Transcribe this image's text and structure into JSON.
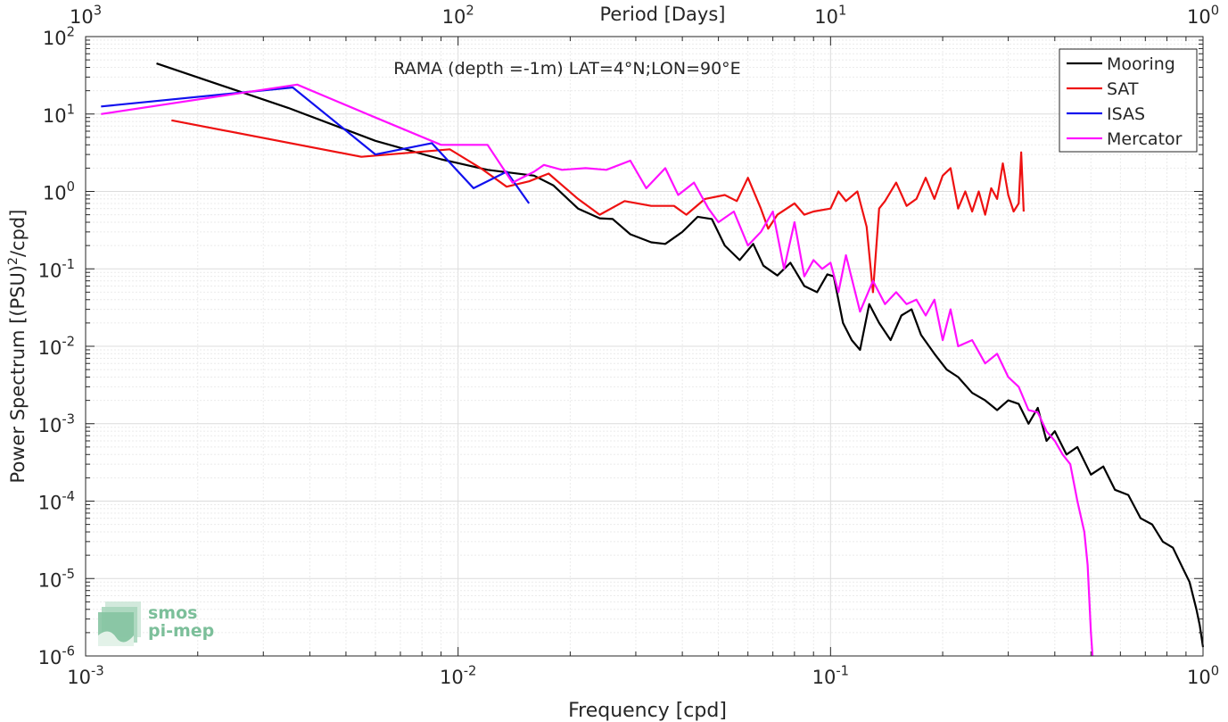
{
  "chart_data": {
    "type": "line",
    "title": "RAMA (depth =-1m) LAT=4°N;LON=90°E",
    "xlabel": "Frequency [cpd]",
    "ylabel": "Power Spectrum [(PSU)^2/cpd]",
    "top_xlabel": "Period [Days]",
    "xscale": "log",
    "yscale": "log",
    "xlim": [
      0.001,
      1
    ],
    "ylim": [
      1e-06,
      100
    ],
    "x_ticks": [
      0.001,
      0.01,
      0.1,
      1
    ],
    "y_ticks": [
      1e-06,
      1e-05,
      0.0001,
      0.001,
      0.01,
      0.1,
      1,
      10,
      100
    ],
    "x_tick_labels": [
      {
        "base": "10",
        "exp": "-3"
      },
      {
        "base": "10",
        "exp": "-2"
      },
      {
        "base": "10",
        "exp": "-1"
      },
      {
        "base": "10",
        "exp": "0"
      }
    ],
    "y_tick_labels": [
      {
        "base": "10",
        "exp": "-6"
      },
      {
        "base": "10",
        "exp": "-5"
      },
      {
        "base": "10",
        "exp": "-4"
      },
      {
        "base": "10",
        "exp": "-3"
      },
      {
        "base": "10",
        "exp": "-2"
      },
      {
        "base": "10",
        "exp": "-1"
      },
      {
        "base": "10",
        "exp": "0"
      },
      {
        "base": "10",
        "exp": "1"
      },
      {
        "base": "10",
        "exp": "2"
      }
    ],
    "top_tick_labels": [
      {
        "base": "10",
        "exp": "3"
      },
      {
        "base": "10",
        "exp": "2"
      },
      {
        "base": "10",
        "exp": "1"
      },
      {
        "base": "10",
        "exp": "0"
      }
    ],
    "grid": true,
    "legend_position": "top-right",
    "series": [
      {
        "name": "Mooring",
        "color": "#000000",
        "points": [
          [
            0.00155,
            45
          ],
          [
            0.0035,
            12
          ],
          [
            0.006,
            4.5
          ],
          [
            0.009,
            2.6
          ],
          [
            0.012,
            1.9
          ],
          [
            0.016,
            1.6
          ],
          [
            0.018,
            1.2
          ],
          [
            0.021,
            0.6
          ],
          [
            0.024,
            0.45
          ],
          [
            0.026,
            0.44
          ],
          [
            0.029,
            0.28
          ],
          [
            0.033,
            0.22
          ],
          [
            0.036,
            0.21
          ],
          [
            0.04,
            0.3
          ],
          [
            0.044,
            0.47
          ],
          [
            0.048,
            0.44
          ],
          [
            0.052,
            0.2
          ],
          [
            0.057,
            0.13
          ],
          [
            0.062,
            0.21
          ],
          [
            0.066,
            0.11
          ],
          [
            0.072,
            0.082
          ],
          [
            0.078,
            0.12
          ],
          [
            0.085,
            0.06
          ],
          [
            0.092,
            0.05
          ],
          [
            0.098,
            0.085
          ],
          [
            0.102,
            0.08
          ],
          [
            0.108,
            0.02
          ],
          [
            0.114,
            0.012
          ],
          [
            0.12,
            0.009
          ],
          [
            0.127,
            0.035
          ],
          [
            0.135,
            0.02
          ],
          [
            0.145,
            0.012
          ],
          [
            0.155,
            0.025
          ],
          [
            0.165,
            0.03
          ],
          [
            0.175,
            0.014
          ],
          [
            0.19,
            0.008
          ],
          [
            0.205,
            0.005
          ],
          [
            0.22,
            0.004
          ],
          [
            0.24,
            0.0025
          ],
          [
            0.26,
            0.002
          ],
          [
            0.28,
            0.0015
          ],
          [
            0.3,
            0.002
          ],
          [
            0.32,
            0.0018
          ],
          [
            0.34,
            0.001
          ],
          [
            0.36,
            0.0016
          ],
          [
            0.38,
            0.0006
          ],
          [
            0.4,
            0.0008
          ],
          [
            0.43,
            0.0004
          ],
          [
            0.46,
            0.0005
          ],
          [
            0.5,
            0.00022
          ],
          [
            0.54,
            0.00028
          ],
          [
            0.58,
            0.00014
          ],
          [
            0.63,
            0.00012
          ],
          [
            0.68,
            6e-05
          ],
          [
            0.73,
            5e-05
          ],
          [
            0.78,
            3e-05
          ],
          [
            0.83,
            2.5e-05
          ],
          [
            0.88,
            1.4e-05
          ],
          [
            0.92,
            9e-06
          ],
          [
            0.96,
            4e-06
          ],
          [
            0.98,
            2.5e-06
          ],
          [
            1.0,
            1.3e-06
          ]
        ]
      },
      {
        "name": "SAT",
        "color": "#ee1111",
        "points": [
          [
            0.0017,
            8.3
          ],
          [
            0.0055,
            2.8
          ],
          [
            0.0095,
            3.5
          ],
          [
            0.0115,
            2.0
          ],
          [
            0.0135,
            1.15
          ],
          [
            0.0155,
            1.35
          ],
          [
            0.0175,
            1.7
          ],
          [
            0.021,
            0.8
          ],
          [
            0.024,
            0.5
          ],
          [
            0.028,
            0.75
          ],
          [
            0.033,
            0.65
          ],
          [
            0.038,
            0.65
          ],
          [
            0.041,
            0.5
          ],
          [
            0.046,
            0.8
          ],
          [
            0.052,
            0.9
          ],
          [
            0.056,
            0.75
          ],
          [
            0.06,
            1.5
          ],
          [
            0.065,
            0.6
          ],
          [
            0.068,
            0.33
          ],
          [
            0.072,
            0.5
          ],
          [
            0.08,
            0.7
          ],
          [
            0.085,
            0.5
          ],
          [
            0.09,
            0.55
          ],
          [
            0.1,
            0.6
          ],
          [
            0.105,
            1.0
          ],
          [
            0.11,
            0.75
          ],
          [
            0.118,
            1.0
          ],
          [
            0.125,
            0.35
          ],
          [
            0.13,
            0.05
          ],
          [
            0.135,
            0.6
          ],
          [
            0.14,
            0.75
          ],
          [
            0.15,
            1.3
          ],
          [
            0.16,
            0.65
          ],
          [
            0.17,
            0.8
          ],
          [
            0.18,
            1.5
          ],
          [
            0.19,
            0.8
          ],
          [
            0.2,
            1.6
          ],
          [
            0.21,
            2.0
          ],
          [
            0.22,
            0.6
          ],
          [
            0.23,
            1.0
          ],
          [
            0.24,
            0.55
          ],
          [
            0.25,
            1.0
          ],
          [
            0.26,
            0.5
          ],
          [
            0.27,
            1.1
          ],
          [
            0.28,
            0.8
          ],
          [
            0.29,
            2.3
          ],
          [
            0.3,
            0.9
          ],
          [
            0.31,
            0.55
          ],
          [
            0.32,
            0.7
          ],
          [
            0.325,
            3.2
          ],
          [
            0.33,
            0.55
          ]
        ]
      },
      {
        "name": "ISAS",
        "color": "#1111ee",
        "points": [
          [
            0.0011,
            12.5
          ],
          [
            0.0036,
            22
          ],
          [
            0.006,
            3.0
          ],
          [
            0.0085,
            4.2
          ],
          [
            0.011,
            1.1
          ],
          [
            0.0135,
            1.8
          ],
          [
            0.0155,
            0.7
          ]
        ]
      },
      {
        "name": "Mercator",
        "color": "#ff11ff",
        "points": [
          [
            0.0011,
            10
          ],
          [
            0.0037,
            24
          ],
          [
            0.006,
            9
          ],
          [
            0.009,
            4
          ],
          [
            0.012,
            4
          ],
          [
            0.014,
            1.3
          ],
          [
            0.016,
            1.8
          ],
          [
            0.017,
            2.2
          ],
          [
            0.019,
            1.9
          ],
          [
            0.022,
            2.0
          ],
          [
            0.025,
            1.9
          ],
          [
            0.029,
            2.5
          ],
          [
            0.032,
            1.1
          ],
          [
            0.036,
            2.0
          ],
          [
            0.039,
            0.9
          ],
          [
            0.043,
            1.3
          ],
          [
            0.047,
            0.6
          ],
          [
            0.05,
            0.4
          ],
          [
            0.055,
            0.55
          ],
          [
            0.06,
            0.2
          ],
          [
            0.065,
            0.3
          ],
          [
            0.07,
            0.55
          ],
          [
            0.075,
            0.1
          ],
          [
            0.08,
            0.4
          ],
          [
            0.085,
            0.08
          ],
          [
            0.09,
            0.13
          ],
          [
            0.095,
            0.1
          ],
          [
            0.1,
            0.12
          ],
          [
            0.105,
            0.05
          ],
          [
            0.11,
            0.15
          ],
          [
            0.12,
            0.028
          ],
          [
            0.13,
            0.07
          ],
          [
            0.14,
            0.035
          ],
          [
            0.15,
            0.05
          ],
          [
            0.16,
            0.035
          ],
          [
            0.17,
            0.04
          ],
          [
            0.18,
            0.025
          ],
          [
            0.19,
            0.04
          ],
          [
            0.2,
            0.012
          ],
          [
            0.21,
            0.03
          ],
          [
            0.22,
            0.01
          ],
          [
            0.24,
            0.012
          ],
          [
            0.26,
            0.006
          ],
          [
            0.28,
            0.008
          ],
          [
            0.3,
            0.004
          ],
          [
            0.32,
            0.003
          ],
          [
            0.34,
            0.0015
          ],
          [
            0.36,
            0.0014
          ],
          [
            0.38,
            0.0008
          ],
          [
            0.4,
            0.0006
          ],
          [
            0.42,
            0.0004
          ],
          [
            0.44,
            0.0003
          ],
          [
            0.46,
            0.0001
          ],
          [
            0.48,
            4e-05
          ],
          [
            0.49,
            1.5e-05
          ],
          [
            0.5,
            2e-06
          ],
          [
            0.505,
            1e-06
          ]
        ]
      }
    ]
  }
}
